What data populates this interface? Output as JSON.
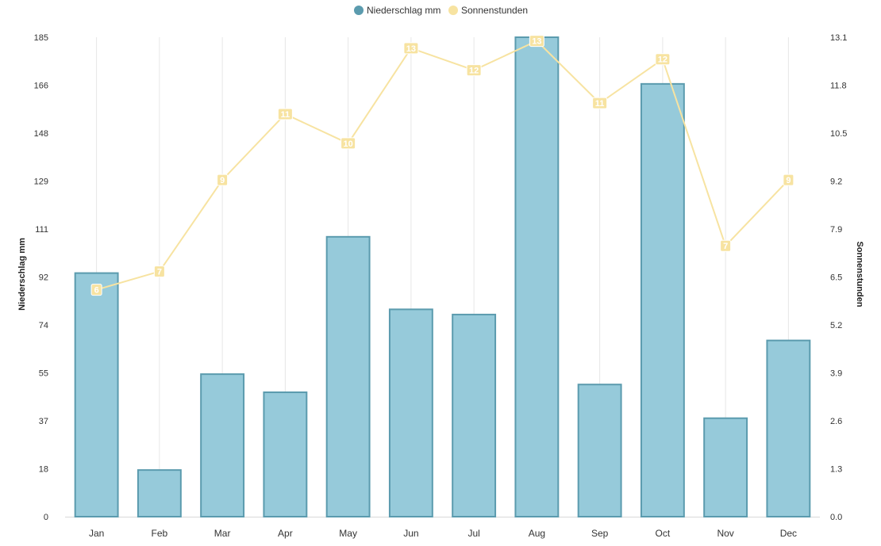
{
  "chart_data": {
    "type": "bar",
    "categories": [
      "Jan",
      "Feb",
      "Mar",
      "Apr",
      "May",
      "Jun",
      "Jul",
      "Aug",
      "Sep",
      "Oct",
      "Nov",
      "Dec"
    ],
    "series": [
      {
        "name": "Niederschlag mm",
        "type": "bar",
        "axis": "left",
        "color": "#96CADA",
        "stroke": "#5B9BAE",
        "values": [
          94,
          18,
          55,
          48,
          108,
          80,
          78,
          185,
          51,
          167,
          38,
          68
        ]
      },
      {
        "name": "Sonnenstunden",
        "type": "line",
        "axis": "right",
        "color": "#F7E3A1",
        "values": [
          6.2,
          6.7,
          9.2,
          11.0,
          10.2,
          12.8,
          12.2,
          13.0,
          11.3,
          12.5,
          7.4,
          9.2
        ],
        "labels": [
          "6",
          "7",
          "9",
          "11",
          "10",
          "13",
          "12",
          "13",
          "11",
          "12",
          "7",
          "9"
        ]
      }
    ],
    "yLeft": {
      "label": "Niederschlag mm",
      "ylim": [
        0,
        185
      ],
      "ticks": [
        "0",
        "18",
        "37",
        "55",
        "74",
        "92",
        "111",
        "129",
        "148",
        "166",
        "185"
      ]
    },
    "yRight": {
      "label": "Sonnenstunden",
      "ylim": [
        0,
        13.1
      ],
      "ticks": [
        "0.0",
        "1.3",
        "2.6",
        "3.9",
        "5.2",
        "6.5",
        "7.9",
        "9.2",
        "10.5",
        "11.8",
        "13.1"
      ]
    },
    "grid": "vertical",
    "legend_position": "top-center"
  }
}
